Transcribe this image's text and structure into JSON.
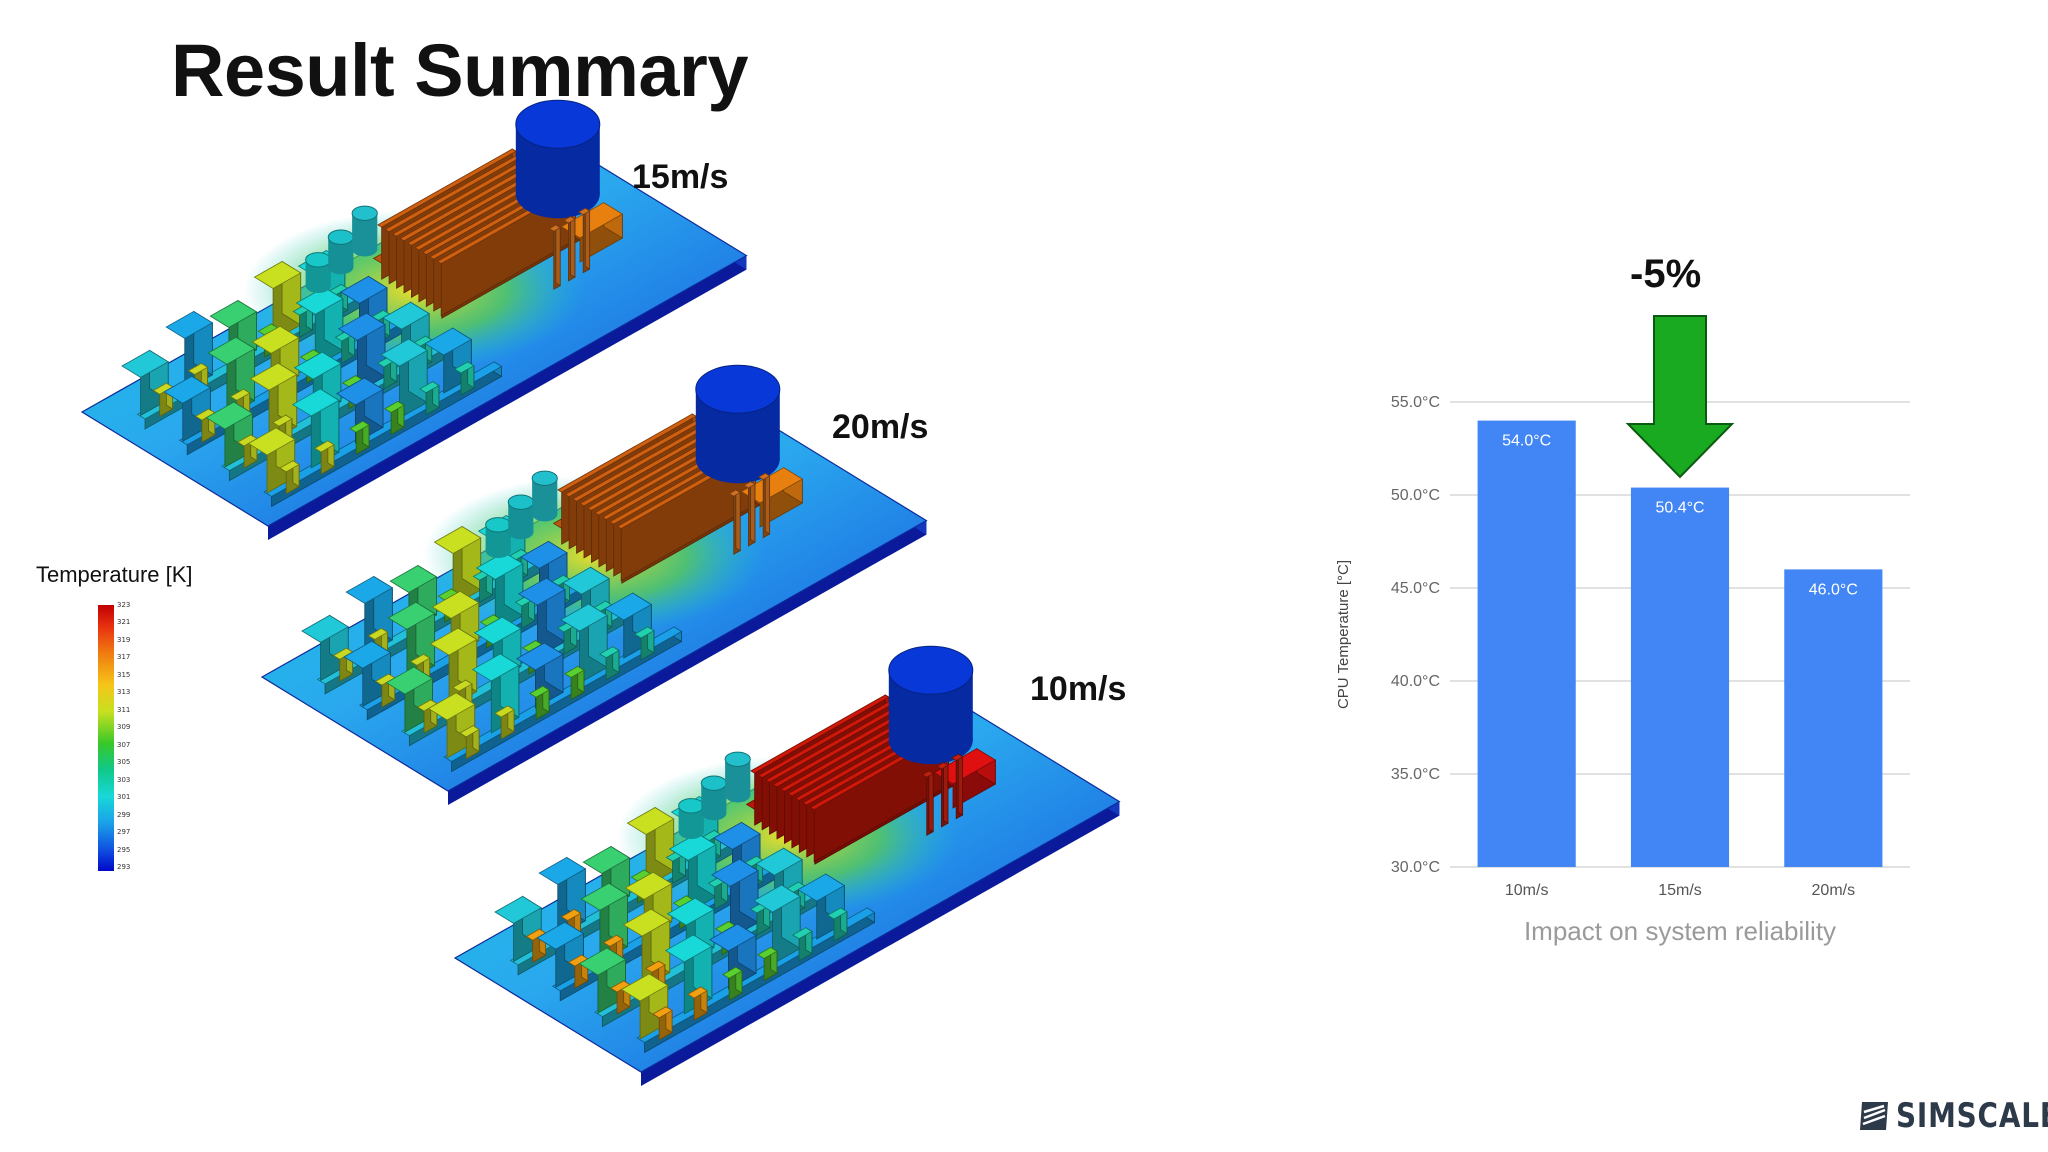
{
  "slide": {
    "title": "Result Summary"
  },
  "simulations": [
    {
      "label": "15m/s"
    },
    {
      "label": "20m/s"
    },
    {
      "label": "10m/s"
    }
  ],
  "legend": {
    "title": "Temperature [K]",
    "ticks": [
      "323",
      "321",
      "319",
      "317",
      "315",
      "313",
      "311",
      "309",
      "307",
      "305",
      "303",
      "301",
      "299",
      "297",
      "295",
      "293"
    ]
  },
  "annotation": {
    "change": "-5%",
    "arrow_color": "#1aaa22"
  },
  "chart_data": {
    "type": "bar",
    "categories": [
      "10m/s",
      "15m/s",
      "20m/s"
    ],
    "values": [
      54.0,
      50.4,
      46.0
    ],
    "data_labels": [
      "54.0°C",
      "50.4°C",
      "46.0°C"
    ],
    "ylabel": "CPU Temperature [°C]",
    "xlabel": "Impact on system reliability",
    "ylim": [
      30.0,
      55.0
    ],
    "yticks": [
      "30.0°C",
      "35.0°C",
      "40.0°C",
      "45.0°C",
      "50.0°C",
      "55.0°C"
    ],
    "bar_color": "#4285f4",
    "grid": true
  },
  "brand": {
    "name": "SIMSCALE"
  }
}
